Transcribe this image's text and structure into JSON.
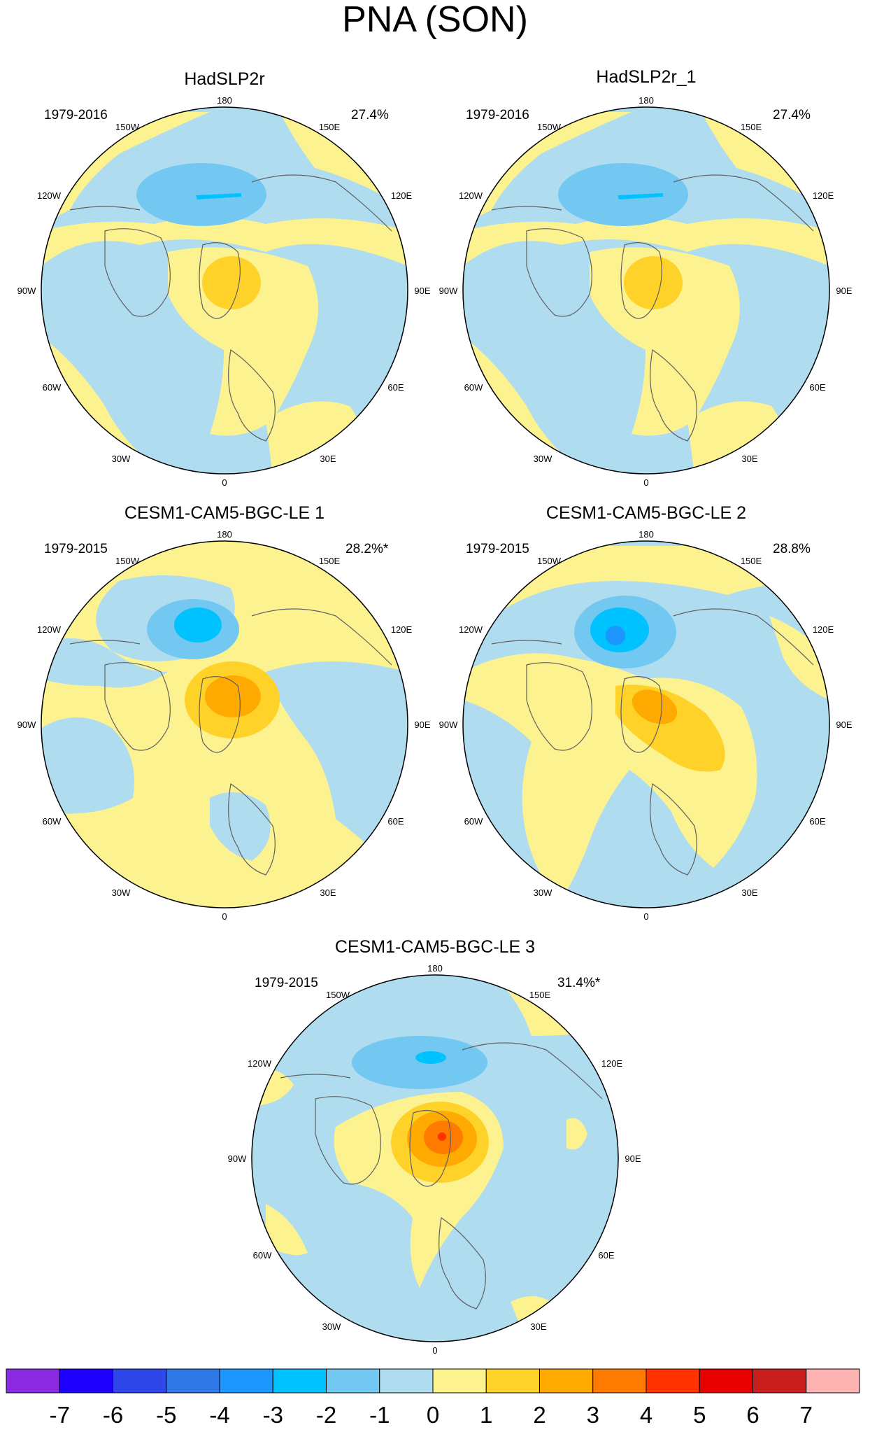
{
  "title": "PNA (SON)",
  "panels": [
    {
      "title": "HadSLP2r",
      "period": "1979-2016",
      "variance": "27.4%",
      "pattern": "obs"
    },
    {
      "title": "HadSLP2r_1",
      "period": "1979-2016",
      "variance": "27.4%",
      "pattern": "obs"
    },
    {
      "title": "CESM1-CAM5-BGC-LE 1",
      "period": "1979-2015",
      "variance": "28.2%*",
      "pattern": "le1"
    },
    {
      "title": "CESM1-CAM5-BGC-LE 2",
      "period": "1979-2015",
      "variance": "28.8%",
      "pattern": "le2"
    },
    {
      "title": "CESM1-CAM5-BGC-LE 3",
      "period": "1979-2015",
      "variance": "31.4%*",
      "pattern": "le3"
    }
  ],
  "longitude_labels": {
    "top": "180",
    "bottom": "0",
    "left": [
      "150W",
      "120W",
      "90W",
      "60W",
      "30W"
    ],
    "right": [
      "150E",
      "120E",
      "90E",
      "60E",
      "30E"
    ]
  },
  "colorbar": {
    "labels": [
      "-7",
      "-6",
      "-5",
      "-4",
      "-3",
      "-2",
      "-1",
      "0",
      "1",
      "2",
      "3",
      "4",
      "5",
      "6",
      "7"
    ],
    "colors": [
      "#8a2be2",
      "#1e00ff",
      "#2f46e8",
      "#3078e8",
      "#1e96ff",
      "#00c2ff",
      "#73c8f2",
      "#b0dcf0",
      "#fcf290",
      "#ffd22a",
      "#ffaa00",
      "#ff7a00",
      "#ff3200",
      "#e60000",
      "#c81e1e",
      "#ffb4b4"
    ]
  }
}
